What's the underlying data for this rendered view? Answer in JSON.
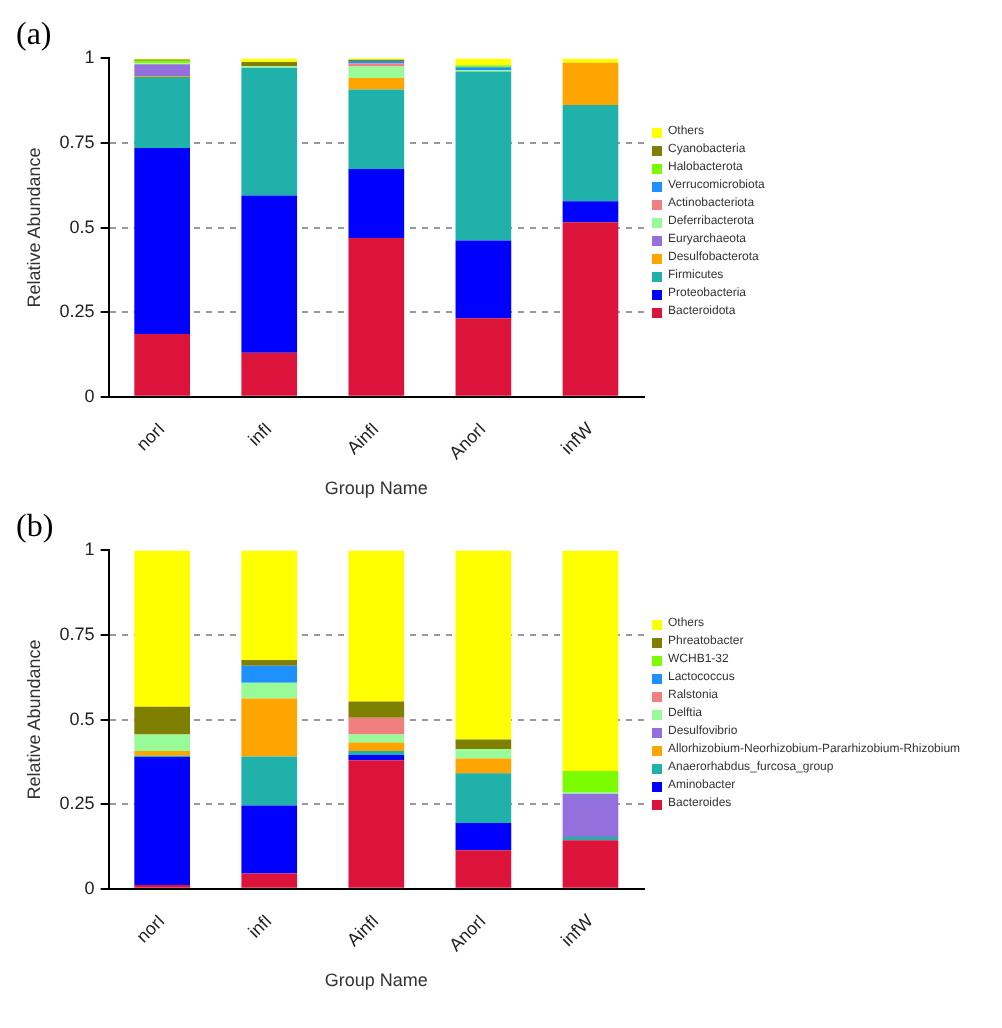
{
  "chart_data": [
    {
      "type": "bar",
      "title": "(a)",
      "xlabel": "Group Name",
      "ylabel": "Relative Abundance",
      "categories": [
        "norI",
        "infI",
        "AinfI",
        "AnorI",
        "infW"
      ],
      "stacked": true,
      "ylim": [
        0,
        1
      ],
      "yticks": [
        0,
        0.25,
        0.5,
        0.75,
        1
      ],
      "grid": "y",
      "legend": "right",
      "series": [
        {
          "name": "Bacteroidota",
          "color": "#dc143c",
          "values": [
            0.185,
            0.13,
            0.469,
            0.232,
            0.516
          ]
        },
        {
          "name": "Proteobacteria",
          "color": "#0000ff",
          "values": [
            0.55,
            0.465,
            0.204,
            0.23,
            0.062
          ]
        },
        {
          "name": "Firmicutes",
          "color": "#20b2aa",
          "values": [
            0.21,
            0.377,
            0.235,
            0.499,
            0.284
          ]
        },
        {
          "name": "Desulfobacterota",
          "color": "#ffa500",
          "values": [
            0.003,
            0,
            0.034,
            0,
            0.125
          ]
        },
        {
          "name": "Euryarchaeota",
          "color": "#9370db",
          "values": [
            0.035,
            0,
            0,
            0,
            0
          ]
        },
        {
          "name": "Deferribacterota",
          "color": "#98fb98",
          "values": [
            0.003,
            0.005,
            0.034,
            0.005,
            0
          ]
        },
        {
          "name": "Actinobacteriota",
          "color": "#f08080",
          "values": [
            0,
            0,
            0.009,
            0,
            0
          ]
        },
        {
          "name": "Verrucomicrobiota",
          "color": "#1e90ff",
          "values": [
            0,
            0,
            0.007,
            0.008,
            0
          ]
        },
        {
          "name": "Halobacterota",
          "color": "#7cfc00",
          "values": [
            0.007,
            0,
            0,
            0.006,
            0
          ]
        },
        {
          "name": "Cyanobacteria",
          "color": "#808000",
          "values": [
            0.004,
            0.012,
            0.004,
            0,
            0
          ]
        },
        {
          "name": "Others",
          "color": "#ffff00",
          "values": [
            0.003,
            0.011,
            0.008,
            0.02,
            0.013
          ]
        }
      ]
    },
    {
      "type": "bar",
      "title": "(b)",
      "xlabel": "Group Name",
      "ylabel": "Relative Abundance",
      "categories": [
        "norI",
        "infI",
        "AinfI",
        "AnorI",
        "infW"
      ],
      "stacked": true,
      "ylim": [
        0,
        1
      ],
      "yticks": [
        0,
        0.25,
        0.5,
        0.75,
        1
      ],
      "grid": "y",
      "legend": "right",
      "series": [
        {
          "name": "Bacteroides",
          "color": "#dc143c",
          "values": [
            0.011,
            0.045,
            0.38,
            0.114,
            0.143
          ]
        },
        {
          "name": "Aminobacter",
          "color": "#0000ff",
          "values": [
            0.378,
            0.201,
            0.015,
            0.08,
            0
          ]
        },
        {
          "name": "Anaerorhabdus_furcosa_group",
          "color": "#20b2aa",
          "values": [
            0.004,
            0.145,
            0.012,
            0.147,
            0.01
          ]
        },
        {
          "name": "Allorhizobium-Neorhizobium-Pararhizobium-Rhizobium",
          "color": "#ffa500",
          "values": [
            0.014,
            0.171,
            0.025,
            0.044,
            0
          ]
        },
        {
          "name": "Desulfovibrio",
          "color": "#9370db",
          "values": [
            0,
            0,
            0,
            0,
            0.128
          ]
        },
        {
          "name": "Delftia",
          "color": "#98fb98",
          "values": [
            0.049,
            0.047,
            0.024,
            0.027,
            0.005
          ]
        },
        {
          "name": "Ralstonia",
          "color": "#f08080",
          "values": [
            0,
            0,
            0.049,
            0,
            0
          ]
        },
        {
          "name": "Lactococcus",
          "color": "#1e90ff",
          "values": [
            0,
            0.05,
            0,
            0,
            0
          ]
        },
        {
          "name": "WCHB1-32",
          "color": "#7cfc00",
          "values": [
            0,
            0,
            0,
            0,
            0.062
          ]
        },
        {
          "name": "Phreatobacter",
          "color": "#808000",
          "values": [
            0.082,
            0.017,
            0.048,
            0.029,
            0
          ]
        },
        {
          "name": "Others",
          "color": "#ffff00",
          "values": [
            0.462,
            0.324,
            0.447,
            0.559,
            0.652
          ]
        }
      ]
    }
  ]
}
